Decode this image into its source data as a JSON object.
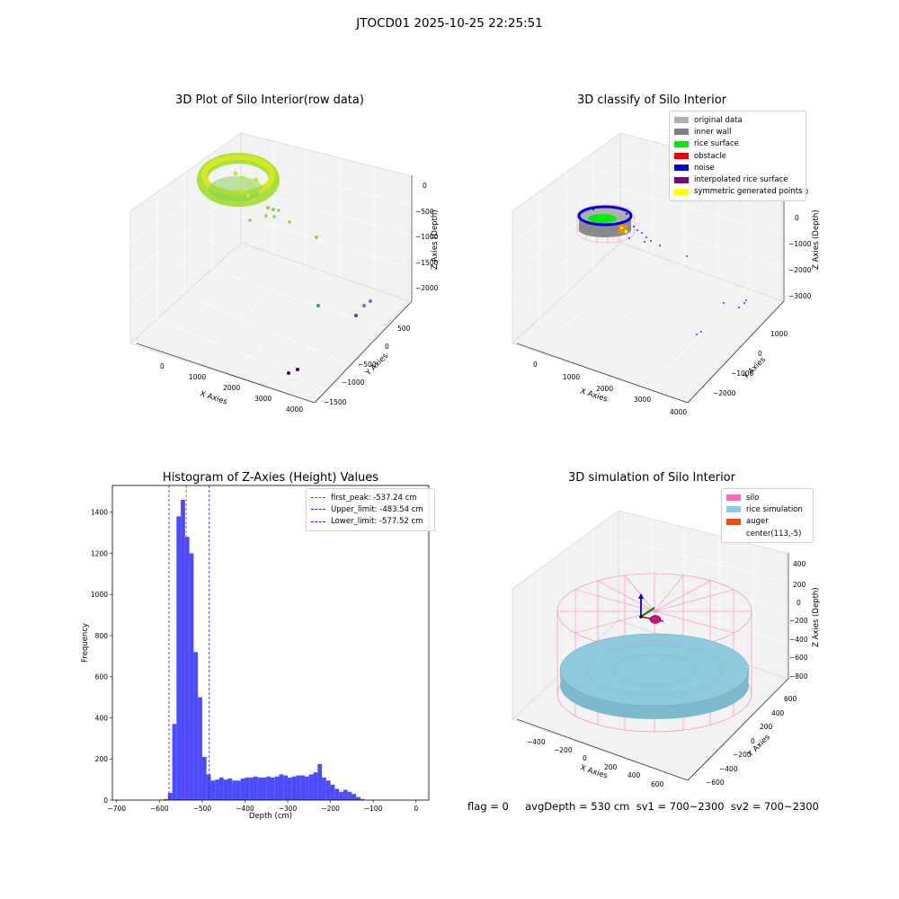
{
  "suptitle": "JTOCD01 2025-10-25 22:25:51",
  "footer": "flag = 0     avgDepth = 530 cm  sv1 = 700~2300  sv2 = 700~2300",
  "chart_data": [
    {
      "type": "scatter",
      "projection": "3d",
      "title": "3D Plot of Silo Interior(row data)",
      "xlabel": "X Axies",
      "ylabel": "Y Axies",
      "zlabel": "Z Axies (Depth)",
      "xticks": [
        "0",
        "1000",
        "2000",
        "3000",
        "4000"
      ],
      "yticks": [
        "500",
        "0",
        "−500",
        "−1000",
        "−1500"
      ],
      "zticks": [
        "0",
        "−500",
        "−1000",
        "−1500",
        "−2000"
      ],
      "colormap": "viridis"
    },
    {
      "type": "scatter",
      "projection": "3d",
      "title": "3D classify of Silo Interior",
      "xlabel": "X Axies",
      "ylabel": "Y Axies",
      "zlabel": "Z Axies (Depth)",
      "xticks": [
        "0",
        "1000",
        "2000",
        "3000",
        "4000"
      ],
      "yticks": [
        "1000",
        "0",
        "−1000",
        "−2000"
      ],
      "zticks": [
        "1000",
        "0",
        "−1000",
        "−2000",
        "−3000"
      ],
      "legend": [
        {
          "name": "original data",
          "color": "#b0b0b0"
        },
        {
          "name": "inner wall",
          "color": "#808080"
        },
        {
          "name": "rice surface",
          "color": "#00ee00"
        },
        {
          "name": "obstacle",
          "color": "#ee0000"
        },
        {
          "name": "noise",
          "color": "#0000dd"
        },
        {
          "name": "interpolated rice surface",
          "color": "#800080"
        },
        {
          "name": "symmetric generated points",
          "color": "#ffff00"
        }
      ]
    },
    {
      "type": "bar",
      "title": "Histogram of Z-Axies (Height) Values",
      "xlabel": "Depth (cm)",
      "ylabel": "Frequency",
      "xlim": [
        -710,
        30
      ],
      "ylim": [
        0,
        1530
      ],
      "xticks": [
        -700,
        -600,
        -500,
        -400,
        -300,
        -200,
        -100,
        0
      ],
      "yticks": [
        0,
        200,
        400,
        600,
        800,
        1000,
        1200,
        1400
      ],
      "bar_color": "#4b4bff",
      "bin_width": 10,
      "bins_start": [
        -590,
        -580,
        -570,
        -560,
        -550,
        -540,
        -530,
        -520,
        -510,
        -500,
        -490,
        -480,
        -470,
        -460,
        -450,
        -440,
        -430,
        -420,
        -410,
        -400,
        -390,
        -380,
        -370,
        -360,
        -350,
        -340,
        -330,
        -320,
        -310,
        -300,
        -290,
        -280,
        -270,
        -260,
        -250,
        -240,
        -230,
        -220,
        -210,
        -200,
        -190,
        -180,
        -170,
        -160,
        -150,
        -140,
        -130,
        -120,
        -110,
        -100,
        -90,
        -80,
        -70,
        -60,
        -50,
        -40,
        -30,
        -20
      ],
      "counts": [
        5,
        35,
        370,
        1380,
        1460,
        1280,
        1200,
        720,
        500,
        210,
        125,
        95,
        100,
        110,
        100,
        105,
        95,
        95,
        105,
        110,
        110,
        115,
        110,
        110,
        115,
        110,
        115,
        125,
        120,
        110,
        115,
        120,
        120,
        115,
        125,
        135,
        175,
        110,
        95,
        75,
        55,
        40,
        50,
        40,
        30,
        15,
        5,
        0,
        0,
        0,
        0,
        0,
        0,
        0,
        0,
        0,
        0,
        0
      ],
      "lines": [
        {
          "name": "first_peak: -537.24 cm",
          "x": -537.24,
          "color": "#ff2020"
        },
        {
          "name": "Upper_limit: -483.54 cm",
          "x": -483.54,
          "color": "#2020ff"
        },
        {
          "name": "Lower_limit: -577.52 cm",
          "x": -577.52,
          "color": "#2020ff"
        }
      ],
      "legend_position": "upper right"
    },
    {
      "type": "surface",
      "projection": "3d",
      "title": "3D simulation of Silo Interior",
      "xlabel": "X Axies",
      "ylabel": "Y Axies",
      "zlabel": "Z Axies (Depth)",
      "xticks": [
        "−400",
        "−200",
        "0",
        "200",
        "400",
        "600"
      ],
      "yticks": [
        "600",
        "400",
        "200",
        "0",
        "−200",
        "−400",
        "−600"
      ],
      "zticks": [
        "400",
        "200",
        "0",
        "−200",
        "−400",
        "−600",
        "−800"
      ],
      "legend": [
        {
          "name": "silo",
          "color": "#ff69b4"
        },
        {
          "name": "rice simulation",
          "color": "#87ceeb"
        },
        {
          "name": "auger",
          "color": "#ff4500"
        },
        {
          "name": "center(113,-5)",
          "color": ""
        }
      ]
    }
  ]
}
